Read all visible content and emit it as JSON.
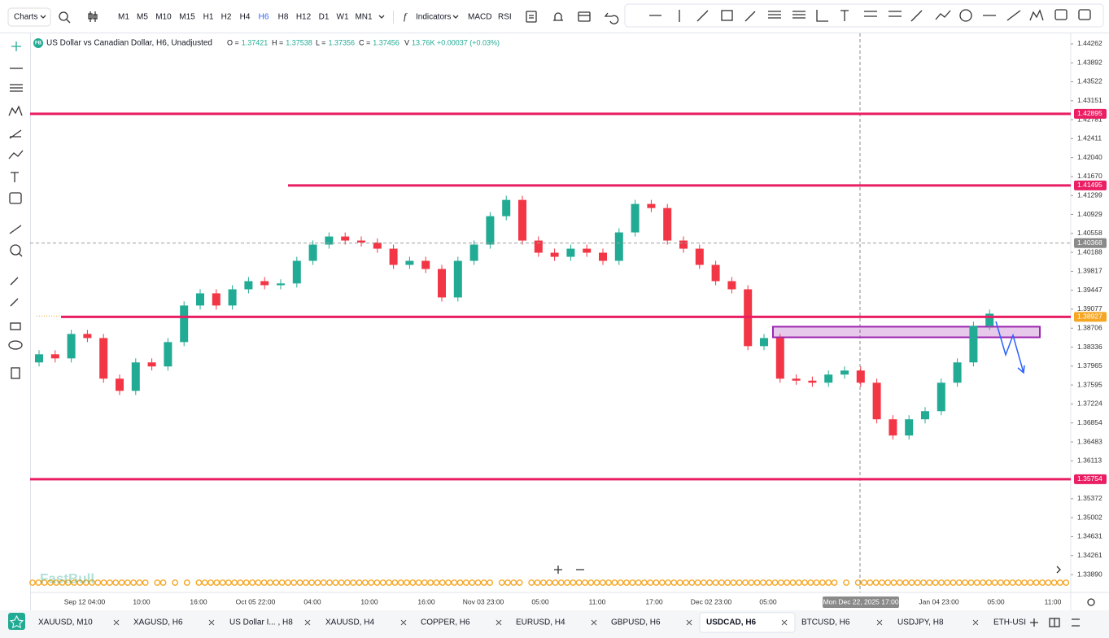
{
  "toolbar": {
    "chart_menu": "Charts",
    "timeframes": [
      "M1",
      "M5",
      "M10",
      "M15",
      "H1",
      "H2",
      "H4",
      "H6",
      "H8",
      "H12",
      "D1",
      "W1",
      "MN1"
    ],
    "active_timeframe": 7,
    "indicators": "Indicators",
    "quick_indicators": [
      "MACD",
      "RSI"
    ]
  },
  "legend": {
    "badge": "FB",
    "symbol": "US Dollar vs Canadian Dollar, H6, Unadjusted",
    "fields": [
      {
        "label": "O =",
        "value": "1.37421"
      },
      {
        "label": "H =",
        "value": "1.37538"
      },
      {
        "label": "L =",
        "value": "1.37356"
      },
      {
        "label": "C =",
        "value": "1.37456"
      },
      {
        "label": "V",
        "value": "13.76K"
      }
    ],
    "change": "+0.00037 (+0.03%)"
  },
  "watermark": "FastBull",
  "chart_data": {
    "type": "candlestick",
    "up_color": "#22ab94",
    "down_color": "#f23645",
    "open": [
      1.38037,
      1.38196,
      1.38116,
      1.38593,
      1.38513,
      1.37719,
      1.37481,
      1.38037,
      1.37958,
      1.38434,
      1.39149,
      1.39387,
      1.39149,
      1.39466,
      1.39625,
      1.39546,
      1.3958,
      1.40022,
      1.4034,
      1.40498,
      1.40419,
      1.4038,
      1.4026,
      1.39943,
      1.40022,
      1.39863,
      1.39307,
      1.40022,
      1.4034,
      1.40895,
      1.41213,
      1.40419,
      1.40181,
      1.40101,
      1.4026,
      1.40181,
      1.40022,
      1.40578,
      1.41134,
      1.41054,
      1.40419,
      1.4026,
      1.39943,
      1.39625,
      1.39466,
      1.38355,
      1.38513,
      1.37719,
      1.3768,
      1.3764,
      1.37799,
      1.37878,
      1.3764,
      1.36925,
      1.36608,
      1.36925,
      1.37084,
      1.3764,
      1.38037,
      1.38752
    ],
    "high": [
      1.38276,
      1.38276,
      1.38673,
      1.38673,
      1.38593,
      1.37799,
      1.38117,
      1.38117,
      1.38514,
      1.39229,
      1.39467,
      1.39467,
      1.39546,
      1.39705,
      1.39705,
      1.3966,
      1.40102,
      1.4042,
      1.40578,
      1.40578,
      1.40499,
      1.4046,
      1.4034,
      1.40102,
      1.40102,
      1.39943,
      1.40102,
      1.4042,
      1.40975,
      1.41293,
      1.41293,
      1.40499,
      1.40261,
      1.4034,
      1.4034,
      1.40261,
      1.40658,
      1.41214,
      1.41214,
      1.41134,
      1.40499,
      1.4034,
      1.40023,
      1.39705,
      1.39546,
      1.38593,
      1.38593,
      1.37799,
      1.3776,
      1.37879,
      1.37958,
      1.37958,
      1.3772,
      1.37005,
      1.37005,
      1.37164,
      1.3772,
      1.38117,
      1.38832,
      1.3907
    ],
    "low": [
      1.37957,
      1.38036,
      1.38036,
      1.38433,
      1.37639,
      1.37401,
      1.37401,
      1.37878,
      1.37878,
      1.38354,
      1.39069,
      1.39069,
      1.39069,
      1.39386,
      1.39466,
      1.39466,
      1.395,
      1.39942,
      1.4026,
      1.40339,
      1.403,
      1.4018,
      1.39863,
      1.39863,
      1.39783,
      1.39227,
      1.39227,
      1.39942,
      1.4026,
      1.40815,
      1.40339,
      1.40101,
      1.40021,
      1.40021,
      1.40101,
      1.39942,
      1.39942,
      1.40498,
      1.40974,
      1.40339,
      1.4018,
      1.39863,
      1.39545,
      1.39386,
      1.38275,
      1.38275,
      1.37639,
      1.376,
      1.3756,
      1.3756,
      1.37719,
      1.3756,
      1.36845,
      1.36528,
      1.36528,
      1.36845,
      1.37004,
      1.3756,
      1.37957,
      1.38672
    ],
    "close": [
      1.38196,
      1.38116,
      1.38593,
      1.38513,
      1.37719,
      1.37481,
      1.38037,
      1.37958,
      1.38434,
      1.39149,
      1.39387,
      1.39149,
      1.39466,
      1.39625,
      1.39546,
      1.3958,
      1.40022,
      1.4034,
      1.40498,
      1.40419,
      1.4038,
      1.4026,
      1.39943,
      1.40022,
      1.39863,
      1.39307,
      1.40022,
      1.4034,
      1.40895,
      1.41213,
      1.40419,
      1.40181,
      1.40101,
      1.4026,
      1.40181,
      1.40022,
      1.40578,
      1.41134,
      1.41054,
      1.40419,
      1.4026,
      1.39943,
      1.39625,
      1.39466,
      1.38355,
      1.38513,
      1.37719,
      1.3768,
      1.3764,
      1.37799,
      1.37878,
      1.3764,
      1.36925,
      1.36608,
      1.36925,
      1.37084,
      1.3764,
      1.38037,
      1.38752,
      1.3899
    ],
    "ylim": [
      1.33541,
      1.44468
    ],
    "yticks": [
      1.44262,
      1.43892,
      1.43522,
      1.43151,
      1.42781,
      1.42411,
      {
        "value": 1.4204,
        "label": "1.42040"
      },
      {
        "value": 1.4167,
        "label": "1.41670"
      },
      1.41299,
      1.40929,
      1.40558,
      1.40188,
      1.39817,
      1.39447,
      1.39077,
      1.38706,
      1.38336,
      1.37965,
      1.37595,
      1.37224,
      1.36854,
      1.36483,
      1.36113,
      1.35372,
      1.35002,
      1.34631,
      1.34261,
      {
        "value": 1.3389,
        "label": "1.33890"
      }
    ],
    "xaxis_labels": [
      "Sep 12 04:00",
      "10:00",
      "16:00",
      "Oct 05 22:00",
      "04:00",
      "10:00",
      "16:00",
      "Nov 03 23:00",
      "05:00",
      "11:00",
      "17:00",
      "Dec 02 23:00",
      "05:00",
      null,
      null,
      "Jan 04 23:00",
      "05:00",
      "11:00"
    ],
    "crosshair_label": "Mon Dec 22, 2025 17:00",
    "levels": [
      {
        "value": 1.42895,
        "color": "#e91e63",
        "box_color": "#e91e63",
        "style": "solid"
      },
      {
        "value": 1.41495,
        "color": "#e91e63",
        "box_color": "#e91e63",
        "style": "solid"
      },
      {
        "value": 1.38927,
        "color": "#e91e63",
        "box_color": "#f5a623",
        "style": "solid"
      },
      {
        "value": 1.35754,
        "color": "#e91e63",
        "box_color": "#e91e63",
        "style": "solid"
      },
      {
        "value": 1.40368,
        "color": "#9e9e9e",
        "box_color": "#8a8a8a",
        "style": "dashed"
      }
    ],
    "zone": {
      "top": 1.38735,
      "bottom": 1.38527,
      "color": "#9c27b0"
    }
  },
  "tabs": {
    "items": [
      "XAUUSD, M10",
      "XAGUSD, H6",
      "US Dollar I... , H8",
      "XAUUSD, H4",
      "COPPER, H6",
      "EURUSD, H4",
      "GBPUSD, H6",
      "USDCAD, H6",
      "BTCUSD, H6",
      "USDJPY, H8",
      "ETH-USI"
    ],
    "active": 7
  }
}
